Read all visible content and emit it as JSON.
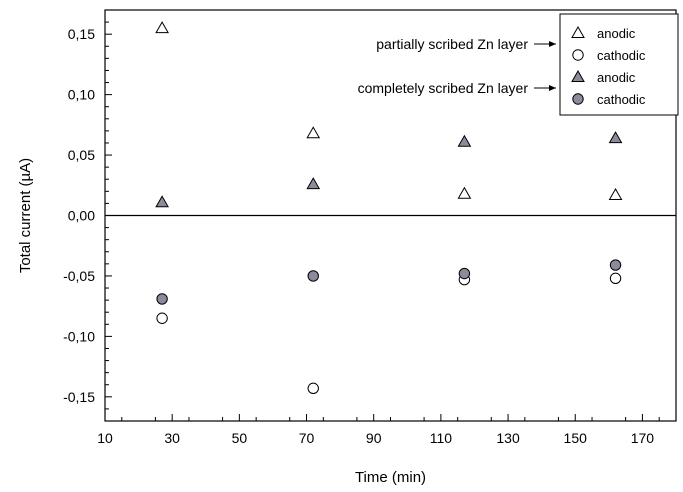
{
  "chart_data": {
    "type": "scatter",
    "xlabel": "Time (min)",
    "ylabel": "Total current (µA)",
    "xlim": [
      10,
      180
    ],
    "ylim": [
      -0.17,
      0.17
    ],
    "xticks": [
      10,
      30,
      50,
      70,
      90,
      110,
      130,
      150,
      170
    ],
    "xtick_labels": [
      "10",
      "30",
      "50",
      "70",
      "90",
      "110",
      "130",
      "150",
      "170"
    ],
    "yticks": [
      -0.15,
      -0.1,
      -0.05,
      0.0,
      0.05,
      0.1,
      0.15
    ],
    "ytick_labels": [
      "-0,15",
      "-0,10",
      "-0,05",
      "0,00",
      "0,05",
      "0,10",
      "0,15"
    ],
    "zero_line": true,
    "grid": false,
    "legend_position": "top-right",
    "series": [
      {
        "name": "anodic",
        "group": "partially scribed Zn layer",
        "marker": "triangle-open",
        "color": "#000000",
        "fill": "#ffffff",
        "x": [
          27,
          72,
          117,
          162
        ],
        "y": [
          0.155,
          0.068,
          0.018,
          0.017
        ]
      },
      {
        "name": "cathodic",
        "group": "partially scribed Zn layer",
        "marker": "circle-open",
        "color": "#000000",
        "fill": "#ffffff",
        "x": [
          27,
          72,
          117,
          162
        ],
        "y": [
          -0.085,
          -0.143,
          -0.053,
          -0.052
        ]
      },
      {
        "name": "anodic",
        "group": "completely scribed Zn layer",
        "marker": "triangle-filled",
        "color": "#000000",
        "fill": "#8a8c9e",
        "x": [
          27,
          72,
          117,
          162
        ],
        "y": [
          0.011,
          0.026,
          0.061,
          0.064
        ]
      },
      {
        "name": "cathodic",
        "group": "completely scribed Zn layer",
        "marker": "circle-filled",
        "color": "#000000",
        "fill": "#8a8c9e",
        "x": [
          27,
          72,
          117,
          162
        ],
        "y": [
          -0.069,
          -0.05,
          -0.048,
          -0.041
        ]
      }
    ],
    "annotations": [
      {
        "text": "partially scribed Zn layer",
        "points_to": "partially scribed Zn layer"
      },
      {
        "text": "completely scribed Zn layer",
        "points_to": "completely scribed Zn layer"
      }
    ]
  }
}
